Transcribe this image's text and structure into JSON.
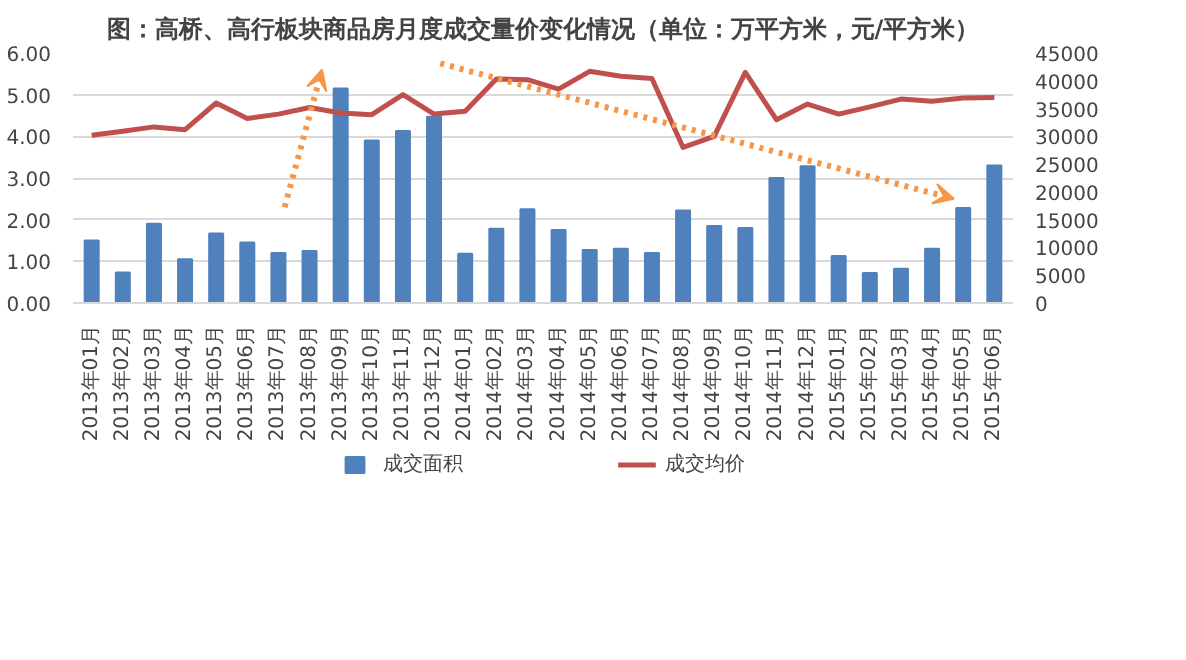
{
  "chart_data": {
    "type": "bar",
    "title": "图：高桥、高行板块商品房月度成交量价变化情况（单位：万平方米，元/平方米）",
    "categories": [
      "2013年01月",
      "2013年02月",
      "2013年03月",
      "2013年04月",
      "2013年05月",
      "2013年06月",
      "2013年07月",
      "2013年08月",
      "2013年09月",
      "2013年10月",
      "2013年11月",
      "2013年12月",
      "2014年01月",
      "2014年02月",
      "2014年03月",
      "2014年04月",
      "2014年05月",
      "2014年06月",
      "2014年07月",
      "2014年08月",
      "2014年09月",
      "2014年10月",
      "2014年11月",
      "2014年12月",
      "2015年01月",
      "2015年02月",
      "2015年03月",
      "2015年04月",
      "2015年05月",
      "2015年06月"
    ],
    "series": [
      {
        "name": "成交面积",
        "color": "#4f81bd",
        "values": [
          1.5,
          0.73,
          1.9,
          1.05,
          1.67,
          1.45,
          1.2,
          1.25,
          5.15,
          3.9,
          4.13,
          4.47,
          1.18,
          1.78,
          2.25,
          1.75,
          1.27,
          1.3,
          1.2,
          2.22,
          1.85,
          1.8,
          3.0,
          3.28,
          1.13,
          0.72,
          0.82,
          1.3,
          2.28,
          3.3
        ]
      },
      {
        "name": "成交均价",
        "type": "line",
        "axis": "y2",
        "color": "#c0504d",
        "values": [
          30200,
          30900,
          31700,
          31200,
          36000,
          33200,
          34000,
          35200,
          34200,
          33900,
          37500,
          34000,
          34500,
          40300,
          40200,
          38500,
          41700,
          40800,
          40400,
          28000,
          30000,
          41500,
          33000,
          35800,
          34000,
          35300,
          36700,
          36300,
          36900,
          37000
        ]
      }
    ],
    "ylim": [
      0,
      6
    ],
    "yticks": [
      {
        "value": 0,
        "label": "0.00"
      },
      {
        "value": 1,
        "label": "1.00"
      },
      {
        "value": 2,
        "label": "2.00"
      },
      {
        "value": 3,
        "label": "3.00"
      },
      {
        "value": 4,
        "label": "4.00"
      },
      {
        "value": 5,
        "label": "5.00"
      },
      {
        "value": 6,
        "label": "6.00"
      }
    ],
    "y2lim": [
      0,
      45000
    ],
    "y2ticks": [
      0,
      5000,
      10000,
      15000,
      20000,
      25000,
      30000,
      35000,
      40000,
      45000
    ],
    "grid": "y",
    "legend": "bottom"
  }
}
